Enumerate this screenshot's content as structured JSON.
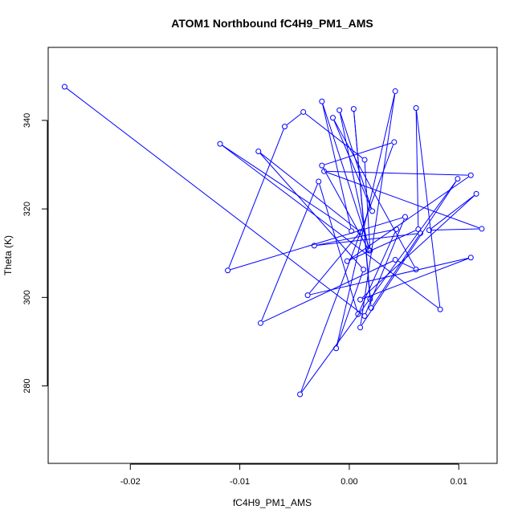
{
  "chart_data": {
    "type": "line",
    "title": "ATOM1 Northbound fC4H9_PM1_AMS",
    "xlabel": "fC4H9_PM1_AMS",
    "ylabel": "Theta (K)",
    "xlim": [
      -0.0275,
      0.0135
    ],
    "ylim": [
      262.5,
      356.5
    ],
    "xticks": [
      -0.02,
      -0.01,
      0.0,
      0.01
    ],
    "xtick_labels": [
      "-0.02",
      "-0.01",
      "0.00",
      "0.01"
    ],
    "yticks": [
      280,
      300,
      320,
      340
    ],
    "ytick_labels": [
      "280",
      "300",
      "320",
      "340"
    ],
    "grid": false,
    "series_color": "#0000ff",
    "points": [
      {
        "x": -0.026,
        "y": 347.6
      },
      {
        "x": 0.0014,
        "y": 295.8
      },
      {
        "x": 0.0051,
        "y": 318.2
      },
      {
        "x": -0.0111,
        "y": 306.1
      },
      {
        "x": -0.0059,
        "y": 338.6
      },
      {
        "x": -0.0042,
        "y": 341.9
      },
      {
        "x": 0.0014,
        "y": 331.1
      },
      {
        "x": 0.0019,
        "y": 310.6
      },
      {
        "x": -0.0025,
        "y": 344.3
      },
      {
        "x": 0.0002,
        "y": 315.0
      },
      {
        "x": -0.0118,
        "y": 334.7
      },
      {
        "x": 0.0083,
        "y": 297.3
      },
      {
        "x": 0.0061,
        "y": 342.8
      },
      {
        "x": 0.0063,
        "y": 315.4
      },
      {
        "x": -0.0002,
        "y": 308.2
      },
      {
        "x": 0.0111,
        "y": 327.6
      },
      {
        "x": -0.0023,
        "y": 328.5
      },
      {
        "x": 0.0121,
        "y": 315.5
      },
      {
        "x": 0.0073,
        "y": 315.2
      },
      {
        "x": 0.0116,
        "y": 323.4
      },
      {
        "x": 0.001,
        "y": 299.5
      },
      {
        "x": 0.0111,
        "y": 309.0
      },
      {
        "x": -0.0038,
        "y": 300.5
      },
      {
        "x": 0.001,
        "y": 314.8
      },
      {
        "x": -0.0083,
        "y": 333.0
      },
      {
        "x": 0.0013,
        "y": 306.3
      },
      {
        "x": -0.0012,
        "y": 288.5
      },
      {
        "x": 0.0042,
        "y": 346.6
      },
      {
        "x": 0.001,
        "y": 293.2
      },
      {
        "x": 0.0099,
        "y": 326.8
      },
      {
        "x": -0.0045,
        "y": 278.1
      },
      {
        "x": 0.0041,
        "y": 335.1
      },
      {
        "x": -0.0025,
        "y": 329.8
      },
      {
        "x": 0.0018,
        "y": 310.6
      },
      {
        "x": -0.0009,
        "y": 342.3
      },
      {
        "x": 0.0021,
        "y": 319.5
      },
      {
        "x": -0.0015,
        "y": 340.6
      },
      {
        "x": 0.0061,
        "y": 306.3
      },
      {
        "x": 0.0042,
        "y": 308.5
      },
      {
        "x": -0.0081,
        "y": 294.2
      },
      {
        "x": -0.0028,
        "y": 326.2
      },
      {
        "x": 0.0008,
        "y": 296.2
      },
      {
        "x": 0.0043,
        "y": 315.4
      },
      {
        "x": -0.0032,
        "y": 311.7
      },
      {
        "x": 0.0065,
        "y": 314.5
      },
      {
        "x": 0.002,
        "y": 297.6
      },
      {
        "x": 0.0004,
        "y": 342.6
      },
      {
        "x": 0.0019,
        "y": 299.6
      }
    ]
  }
}
